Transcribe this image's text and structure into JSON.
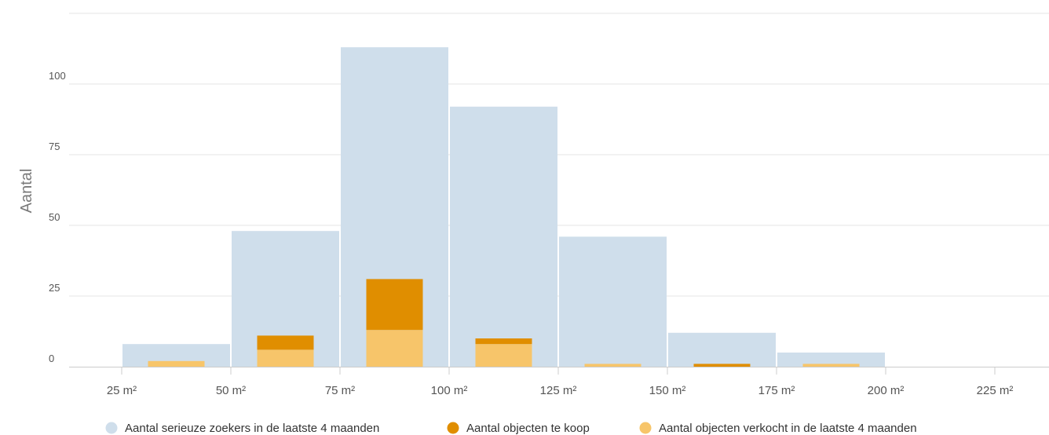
{
  "chart_data": {
    "type": "bar",
    "title": "",
    "xlabel": "",
    "ylabel": "Aantal",
    "ylim": [
      0,
      125
    ],
    "y_ticks": [
      0,
      25,
      50,
      75,
      100
    ],
    "y_tick_labels": [
      "0",
      "25",
      "50",
      "75",
      "100"
    ],
    "x_ticks": [
      25,
      50,
      75,
      100,
      125,
      150,
      175,
      200,
      225
    ],
    "x_tick_labels": [
      "25 m²",
      "50 m²",
      "75 m²",
      "100 m²",
      "125 m²",
      "150 m²",
      "175 m²",
      "200 m²",
      "225 m²"
    ],
    "bins": [
      [
        25,
        50
      ],
      [
        50,
        75
      ],
      [
        75,
        100
      ],
      [
        100,
        125
      ],
      [
        125,
        150
      ],
      [
        150,
        175
      ],
      [
        175,
        200
      ],
      [
        200,
        225
      ]
    ],
    "grid": true,
    "legend_position": "bottom",
    "colors": {
      "zoekers": "#cfdeeb",
      "te_koop": "#e08e00",
      "verkocht": "#f7c56a",
      "grid": "#e6e6e6",
      "axis": "#cccccc"
    },
    "series": [
      {
        "name": "Aantal serieuze zoekers in de laatste 4 maanden",
        "key": "zoekers",
        "values": [
          8,
          48,
          113,
          92,
          46,
          12,
          5,
          0
        ]
      },
      {
        "name": "Aantal objecten te koop",
        "key": "te_koop",
        "values": [
          0,
          5,
          18,
          2,
          0,
          1,
          0,
          0
        ]
      },
      {
        "name": "Aantal objecten verkocht in de laatste 4 maanden",
        "key": "verkocht",
        "values": [
          2,
          6,
          13,
          8,
          1,
          0,
          1,
          0
        ]
      }
    ]
  }
}
